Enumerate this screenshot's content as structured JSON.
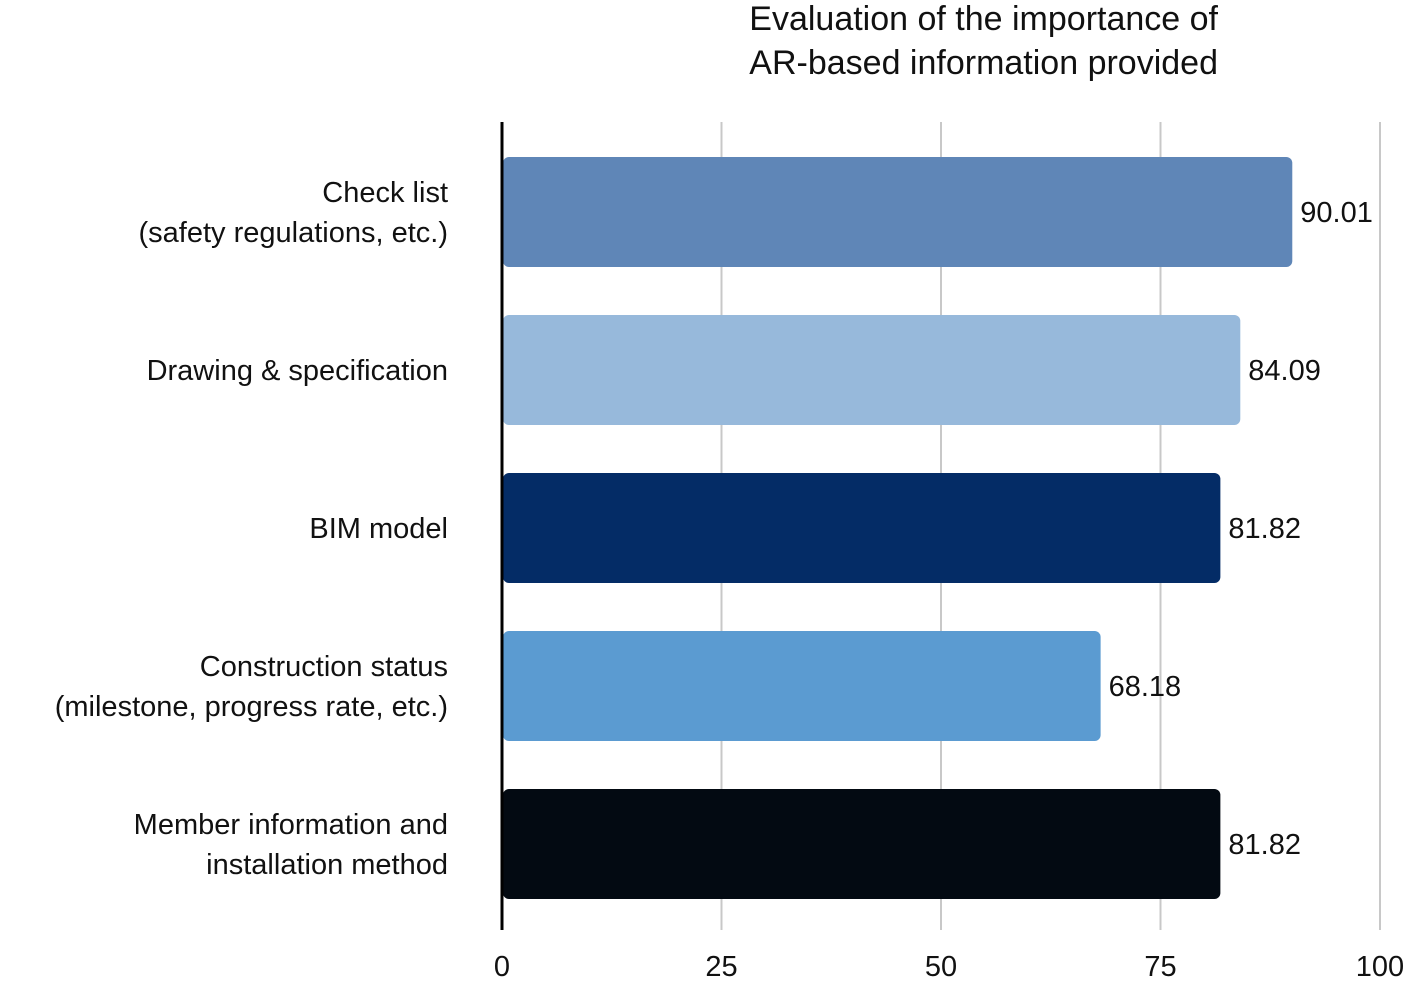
{
  "chart_data": {
    "type": "bar",
    "orientation": "horizontal",
    "title_lines": [
      "Evaluation of the importance of",
      "AR-based information provided"
    ],
    "categories": [
      [
        "Check list",
        "(safety regulations, etc.)"
      ],
      [
        "Drawing & specification"
      ],
      [
        "BIM model"
      ],
      [
        "Construction status",
        "(milestone, progress rate, etc.)"
      ],
      [
        "Member information and",
        "installation method"
      ]
    ],
    "values": [
      90.01,
      84.09,
      81.82,
      68.18,
      81.82
    ],
    "value_labels": [
      "90.01",
      "84.09",
      "81.82",
      "68.18",
      "81.82"
    ],
    "bar_colors": [
      "#5f86b7",
      "#97b9db",
      "#042c66",
      "#5b9bd1",
      "#030a12"
    ],
    "xlim": [
      0,
      100
    ],
    "xticks": [
      0,
      25,
      50,
      75,
      100
    ],
    "xtick_labels": [
      "0",
      "25",
      "50",
      "75",
      "100"
    ],
    "grid": true
  }
}
